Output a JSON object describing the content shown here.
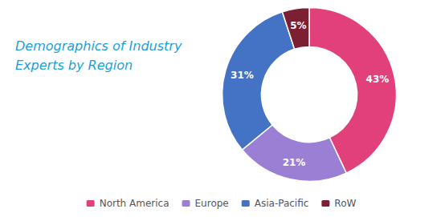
{
  "chart_data": {
    "type": "pie",
    "title": "Demographics of Industry\nExperts by Region",
    "categories": [
      "North America",
      "Europe",
      "Asia-Pacific",
      "RoW"
    ],
    "values": [
      43,
      21,
      31,
      5
    ],
    "value_labels": [
      "43%",
      "21%",
      "31%",
      "5%"
    ],
    "colors": [
      "#E2407A",
      "#9B7FD4",
      "#4472C4",
      "#7B2033"
    ],
    "data_labels": true,
    "legend": "bottom"
  }
}
